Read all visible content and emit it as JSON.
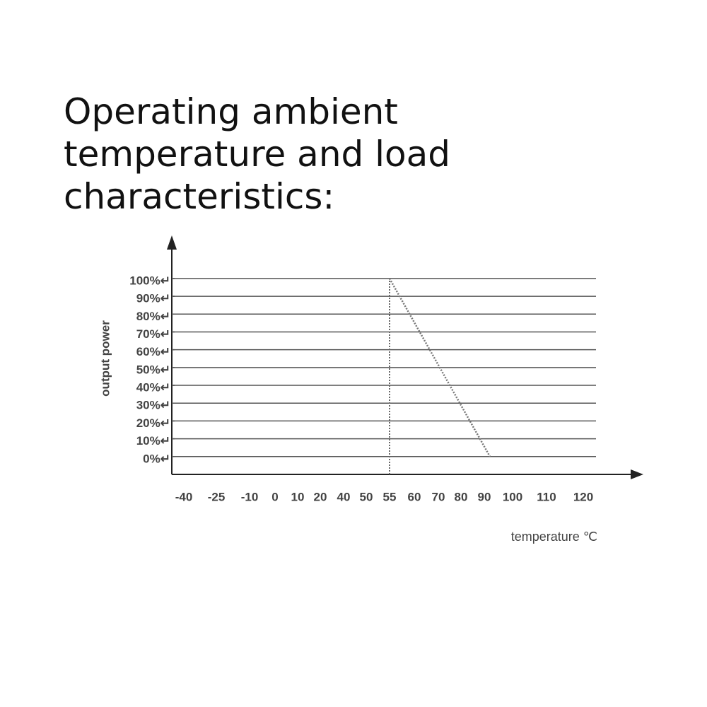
{
  "chart_data": {
    "type": "line",
    "title": "Operating ambient temperature and load characteristics:",
    "ylabel": "output power",
    "xlabel": "temperature ℃",
    "xlim": [
      -45,
      136
    ],
    "xticks": [
      -40,
      -25,
      -10,
      0,
      10,
      20,
      40,
      50,
      55,
      60,
      70,
      80,
      90,
      100,
      110,
      120
    ],
    "ylim": [
      -10,
      121
    ],
    "yticks": [
      {
        "value": 0,
        "label": "0%↵"
      },
      {
        "value": 10,
        "label": "10%↵"
      },
      {
        "value": 20,
        "label": "20%↵"
      },
      {
        "value": 30,
        "label": "30%↵"
      },
      {
        "value": 40,
        "label": "40%↵"
      },
      {
        "value": 50,
        "label": "50%↵"
      },
      {
        "value": 60,
        "label": "60%↵"
      },
      {
        "value": 70,
        "label": "70%↵"
      },
      {
        "value": 80,
        "label": "80%↵"
      },
      {
        "value": 90,
        "label": "90%↵"
      },
      {
        "value": 100,
        "label": "100%↵"
      }
    ],
    "grid": true,
    "vline": 55,
    "series": [
      {
        "color": "#777777",
        "x": [
          55,
          92
        ],
        "values": [
          100,
          0
        ]
      }
    ]
  }
}
